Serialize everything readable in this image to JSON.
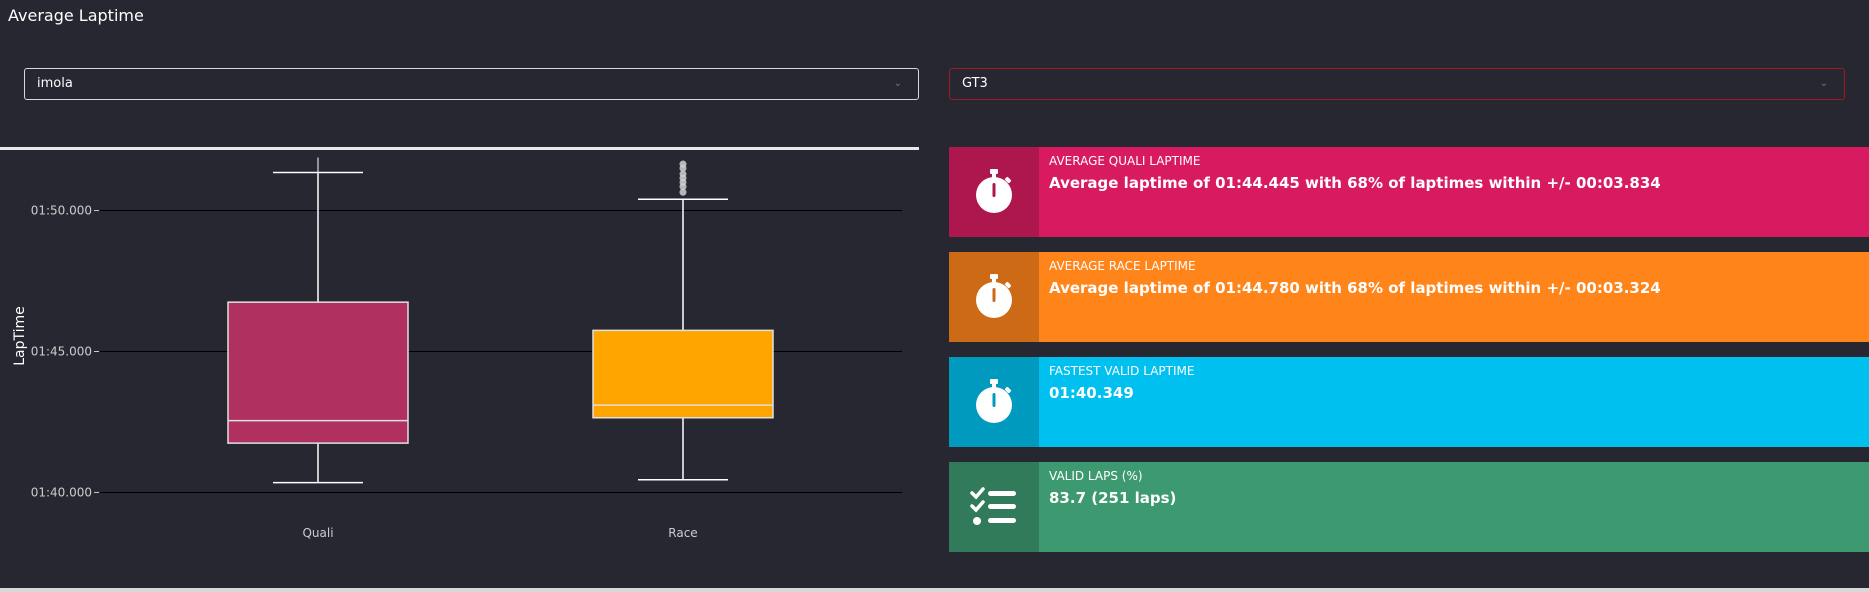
{
  "page": {
    "title": "Average Laptime"
  },
  "filters": {
    "track": {
      "value": "imola"
    },
    "car_class": {
      "value": "GT3"
    }
  },
  "colors": {
    "background": "#262730",
    "quali": "#d81b60",
    "quali_dark": "#ad174d",
    "race": "#ff851b",
    "race_dark": "#cc6a16",
    "fastest": "#00c0ef",
    "fastest_dark": "#009abf",
    "valid": "#3d9970",
    "valid_dark": "#317a5a",
    "box_quali": "#b03060",
    "box_race": "#ffa500"
  },
  "cards": [
    {
      "label": "AVERAGE QUALI LAPTIME",
      "value": "Average laptime of 01:44.445 with 68% of laptimes within +/- 00:03.834",
      "icon": "stopwatch-icon"
    },
    {
      "label": "AVERAGE RACE LAPTIME",
      "value": "Average laptime of 01:44.780 with 68% of laptimes within +/- 00:03.324",
      "icon": "stopwatch-icon"
    },
    {
      "label": "FASTEST VALID LAPTIME",
      "value": "01:40.349",
      "icon": "stopwatch-icon"
    },
    {
      "label": "VALID LAPS (%)",
      "value": "83.7 (251 laps)",
      "icon": "checklist-icon"
    }
  ],
  "chart_data": {
    "type": "box",
    "title": "",
    "xlabel": "",
    "ylabel": "LapTime",
    "ylim_seconds": [
      99.2,
      111.9
    ],
    "y_ticks": [
      {
        "value": 100,
        "label": "01:40.000"
      },
      {
        "value": 105,
        "label": "01:45.000"
      },
      {
        "value": 110,
        "label": "01:50.000"
      }
    ],
    "categories": [
      "Quali",
      "Race"
    ],
    "boxes": [
      {
        "name": "Quali",
        "min": 100.35,
        "q1": 101.75,
        "median": 102.55,
        "q3": 106.75,
        "max": 111.35,
        "outliers": []
      },
      {
        "name": "Race",
        "min": 100.45,
        "q1": 102.65,
        "median": 103.1,
        "q3": 105.75,
        "max": 110.4,
        "outliers": [
          110.65,
          110.85,
          111.0,
          111.15,
          111.3,
          111.5,
          111.65
        ]
      }
    ]
  }
}
